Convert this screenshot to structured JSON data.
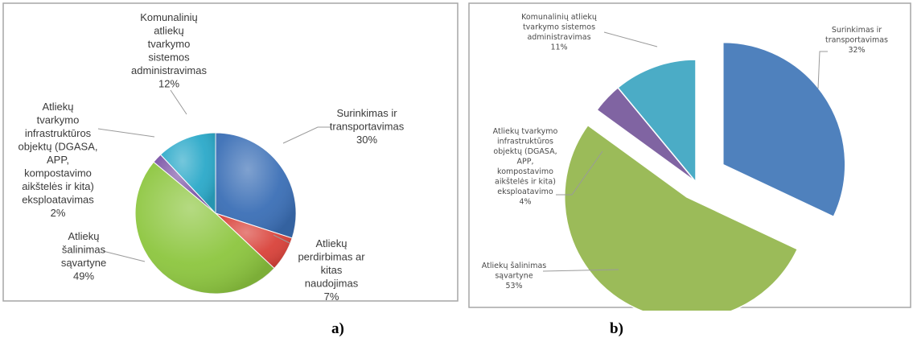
{
  "captions": {
    "a": "a)",
    "b": "b)"
  },
  "chart_data": [
    {
      "type": "pie",
      "slices": [
        {
          "label": [
            "Surinkimas ir",
            "transportavimas",
            "30%"
          ],
          "value": 30,
          "color": "#3B6FB6"
        },
        {
          "label": [
            "Atliekų",
            "perdirbimas ar",
            "kitas",
            "naudojimas",
            "7%"
          ],
          "value": 7,
          "color": "#D9423A"
        },
        {
          "label": [
            "Atliekų",
            "šalinimas",
            "sąvartyne",
            "49%"
          ],
          "value": 49,
          "color": "#8DC63F"
        },
        {
          "label": [
            "Atliekų",
            "tvarkymo",
            "infrastruktūros",
            "objektų (DGASA,",
            "APP,",
            "kompostavimo",
            "aikštelės ir kita)",
            "eksploatavimas",
            "2%"
          ],
          "value": 2,
          "color": "#7E57A8"
        },
        {
          "label": [
            "Komunalinių",
            "atliekų",
            "tvarkymo",
            "sistemos",
            "administravimas",
            "12%"
          ],
          "value": 12,
          "color": "#2BA9C9"
        }
      ]
    },
    {
      "type": "pie",
      "slices": [
        {
          "label": [
            "Surinkimas ir",
            "transportavimas",
            "32%"
          ],
          "value": 32,
          "color": "#4F81BD"
        },
        {
          "label": [
            "Atliekų šalinimas",
            "sąvartyne",
            "53%"
          ],
          "value": 53,
          "color": "#9BBB59"
        },
        {
          "label": [
            "Atliekų tvarkymo",
            "infrastruktūros",
            "objektų (DGASA,",
            "APP,",
            "kompostavimo",
            "aikštelės ir kita)",
            "eksploatavimo",
            "4%"
          ],
          "value": 4,
          "color": "#8064A2"
        },
        {
          "label": [
            "Komunalinių atliekų",
            "tvarkymo sistemos",
            "administravimas",
            "11%"
          ],
          "value": 11,
          "color": "#4BACC6"
        }
      ]
    }
  ]
}
